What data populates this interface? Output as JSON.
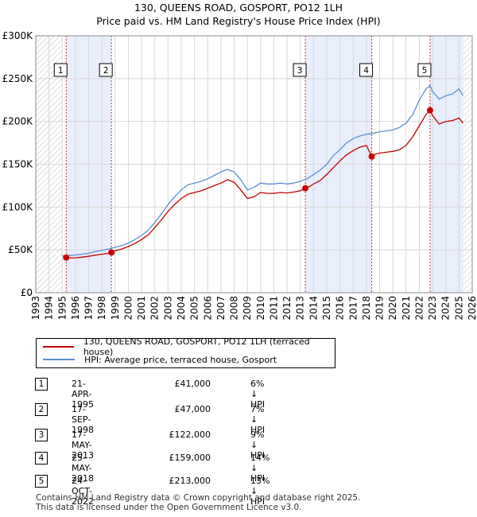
{
  "title_line1": "130, QUEENS ROAD, GOSPORT, PO12 1LH",
  "title_line2": "Price paid vs. HM Land Registry's House Price Index (HPI)",
  "colors": {
    "property": "#c00000",
    "hpi": "#5b8fd0",
    "shade": "#e8eefb",
    "grid": "#d8d8d8"
  },
  "chart_data": {
    "type": "line",
    "title": "Price paid vs. HM Land Registry's House Price Index (HPI)",
    "xlabel": "",
    "ylabel": "",
    "xlim": [
      1993,
      2026
    ],
    "ylim": [
      0,
      300000
    ],
    "x_ticks": [
      "1993",
      "1994",
      "1995",
      "1996",
      "1997",
      "1998",
      "1999",
      "2000",
      "2001",
      "2002",
      "2003",
      "2004",
      "2005",
      "2006",
      "2007",
      "2008",
      "2009",
      "2010",
      "2011",
      "2012",
      "2013",
      "2014",
      "2015",
      "2016",
      "2017",
      "2018",
      "2019",
      "2020",
      "2021",
      "2022",
      "2023",
      "2024",
      "2025",
      "2026"
    ],
    "y_ticks": [
      {
        "value": 0,
        "label": "£0"
      },
      {
        "value": 50000,
        "label": "£50K"
      },
      {
        "value": 100000,
        "label": "£100K"
      },
      {
        "value": 150000,
        "label": "£150K"
      },
      {
        "value": 200000,
        "label": "£200K"
      },
      {
        "value": 250000,
        "label": "£250K"
      },
      {
        "value": 300000,
        "label": "£300K"
      }
    ],
    "series": [
      {
        "name": "HPI: Average price, terraced house, Gosport",
        "x": [
          1995.0,
          1995.5,
          1996.0,
          1996.5,
          1997.0,
          1997.5,
          1998.0,
          1998.5,
          1999.0,
          1999.5,
          2000.0,
          2000.5,
          2001.0,
          2001.5,
          2002.0,
          2002.5,
          2003.0,
          2003.5,
          2004.0,
          2004.5,
          2005.0,
          2005.5,
          2006.0,
          2006.5,
          2007.0,
          2007.5,
          2008.0,
          2008.5,
          2009.0,
          2009.5,
          2010.0,
          2010.5,
          2011.0,
          2011.5,
          2012.0,
          2012.5,
          2013.0,
          2013.5,
          2014.0,
          2014.5,
          2015.0,
          2015.5,
          2016.0,
          2016.5,
          2017.0,
          2017.5,
          2018.0,
          2018.5,
          2019.0,
          2019.5,
          2020.0,
          2020.5,
          2021.0,
          2021.5,
          2022.0,
          2022.5,
          2022.8,
          2023.0,
          2023.5,
          2024.0,
          2024.5,
          2025.0,
          2025.3
        ],
        "values": [
          43000,
          43500,
          44000,
          45000,
          46000,
          48000,
          49500,
          51000,
          53000,
          55000,
          58000,
          62000,
          67000,
          73000,
          82000,
          92000,
          103000,
          112000,
          120000,
          126000,
          128000,
          130000,
          133000,
          137000,
          141000,
          144000,
          141000,
          132000,
          120000,
          123000,
          128000,
          127000,
          127000,
          128000,
          127000,
          128000,
          130000,
          133000,
          138000,
          143000,
          150000,
          160000,
          167000,
          175000,
          180000,
          183000,
          185000,
          186000,
          188000,
          189000,
          190000,
          193000,
          198000,
          208000,
          225000,
          238000,
          242000,
          235000,
          226000,
          230000,
          232000,
          238000,
          230000
        ]
      },
      {
        "name": "130, QUEENS ROAD, GOSPORT, PO12 1LH (terraced house)",
        "x": [
          1995.3,
          1995.5,
          1996.0,
          1996.5,
          1997.0,
          1997.5,
          1998.0,
          1998.5,
          1998.72,
          1999.0,
          1999.5,
          2000.0,
          2000.5,
          2001.0,
          2001.5,
          2002.0,
          2002.5,
          2003.0,
          2003.5,
          2004.0,
          2004.5,
          2005.0,
          2005.5,
          2006.0,
          2006.5,
          2007.0,
          2007.5,
          2008.0,
          2008.5,
          2009.0,
          2009.5,
          2010.0,
          2010.5,
          2011.0,
          2011.5,
          2012.0,
          2012.5,
          2013.0,
          2013.38,
          2013.7,
          2014.0,
          2014.5,
          2015.0,
          2015.5,
          2016.0,
          2016.5,
          2017.0,
          2017.5,
          2018.0,
          2018.4,
          2018.7,
          2019.0,
          2019.5,
          2020.0,
          2020.5,
          2021.0,
          2021.5,
          2022.0,
          2022.5,
          2022.81,
          2023.0,
          2023.5,
          2024.0,
          2024.5,
          2025.0,
          2025.3
        ],
        "values": [
          41000,
          40500,
          40800,
          41500,
          42500,
          43800,
          45000,
          46000,
          47000,
          49000,
          51000,
          54000,
          57500,
          62000,
          67500,
          76000,
          85000,
          95000,
          103000,
          110000,
          115000,
          117000,
          119000,
          122000,
          125000,
          128000,
          132000,
          129000,
          120000,
          110000,
          112000,
          117000,
          116000,
          116000,
          117000,
          116500,
          117500,
          119000,
          122000,
          124000,
          127000,
          131000,
          138000,
          146000,
          154000,
          161000,
          166000,
          170000,
          172000,
          159000,
          162000,
          163000,
          164000,
          165000,
          167000,
          172000,
          182000,
          195000,
          208000,
          213000,
          207000,
          197000,
          200000,
          201000,
          204000,
          198000
        ]
      }
    ],
    "sales": [
      {
        "label": "1",
        "x": 1995.3,
        "price": 41000
      },
      {
        "label": "2",
        "x": 1998.72,
        "price": 47000
      },
      {
        "label": "3",
        "x": 2013.38,
        "price": 122000
      },
      {
        "label": "4",
        "x": 2018.4,
        "price": 159000
      },
      {
        "label": "5",
        "x": 2022.81,
        "price": 213000
      }
    ]
  },
  "legend": {
    "property_label": "130, QUEENS ROAD, GOSPORT, PO12 1LH (terraced house)",
    "hpi_label": "HPI: Average price, terraced house, Gosport"
  },
  "transactions": [
    {
      "num": "1",
      "date": "21-APR-1995",
      "price": "£41,000",
      "hpi": "6% ↓ HPI"
    },
    {
      "num": "2",
      "date": "17-SEP-1998",
      "price": "£47,000",
      "hpi": "7% ↓ HPI"
    },
    {
      "num": "3",
      "date": "17-MAY-2013",
      "price": "£122,000",
      "hpi": "9% ↓ HPI"
    },
    {
      "num": "4",
      "date": "25-MAY-2018",
      "price": "£159,000",
      "hpi": "14% ↓ HPI"
    },
    {
      "num": "5",
      "date": "24-OCT-2022",
      "price": "£213,000",
      "hpi": "13% ↓ HPI"
    }
  ],
  "footer": {
    "line1": "Contains HM Land Registry data © Crown copyright and database right 2025.",
    "line2": "This data is licensed under the Open Government Licence v3.0."
  }
}
